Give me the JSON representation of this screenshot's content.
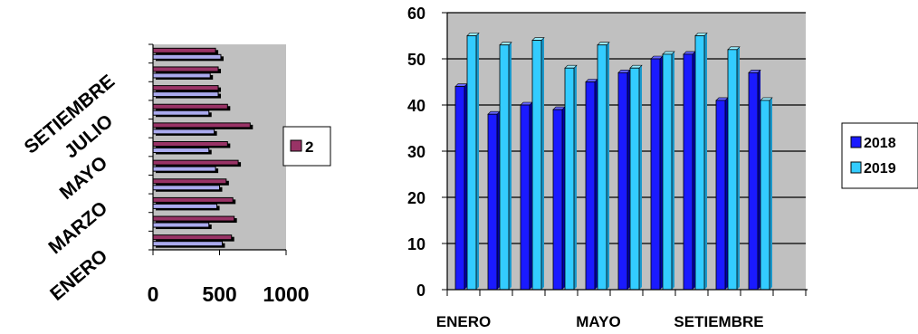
{
  "chart_data": [
    {
      "type": "bar",
      "orientation": "horizontal",
      "categories": [
        "ENERO",
        "",
        "MARZO",
        "",
        "MAYO",
        "",
        "JULIO",
        "",
        "SETIEMBRE",
        "",
        ""
      ],
      "category_labels_shown": [
        "ENERO",
        "MARZO",
        "MAYO",
        "JULIO",
        "SETIEMBRE"
      ],
      "series": [
        {
          "values": [
            520,
            420,
            480,
            500,
            470,
            420,
            460,
            420,
            490,
            430,
            510
          ],
          "color": "#aaaaee"
        },
        {
          "values": [
            590,
            610,
            600,
            550,
            640,
            560,
            730,
            560,
            490,
            490,
            470
          ],
          "color": "#993366"
        }
      ],
      "legend_entries": [
        "2"
      ],
      "legend_position": "right",
      "xlim": [
        0,
        1000
      ],
      "xticks": [
        "0",
        "500",
        "1000"
      ],
      "plot_background": "#c0c0c0",
      "grid": false
    },
    {
      "type": "bar",
      "orientation": "vertical",
      "categories": [
        "ENERO",
        "",
        "",
        "",
        "MAYO",
        "",
        "",
        "",
        "SETIEMBRE",
        "",
        ""
      ],
      "category_labels_shown": [
        "ENERO",
        "MAYO",
        "SETIEMBRE"
      ],
      "series": [
        {
          "name": "2018",
          "values": [
            44,
            38,
            40,
            39,
            45,
            47,
            50,
            51,
            41,
            47,
            null
          ],
          "color": "#1a1aff"
        },
        {
          "name": "2019",
          "values": [
            55,
            53,
            54,
            48,
            53,
            48,
            51,
            55,
            52,
            41,
            null
          ],
          "color": "#33ccff"
        }
      ],
      "ylim": [
        0,
        60
      ],
      "yticks": [
        "0",
        "10",
        "20",
        "30",
        "40",
        "50",
        "60"
      ],
      "legend_position": "right",
      "plot_background": "#c0c0c0",
      "grid": true
    }
  ]
}
